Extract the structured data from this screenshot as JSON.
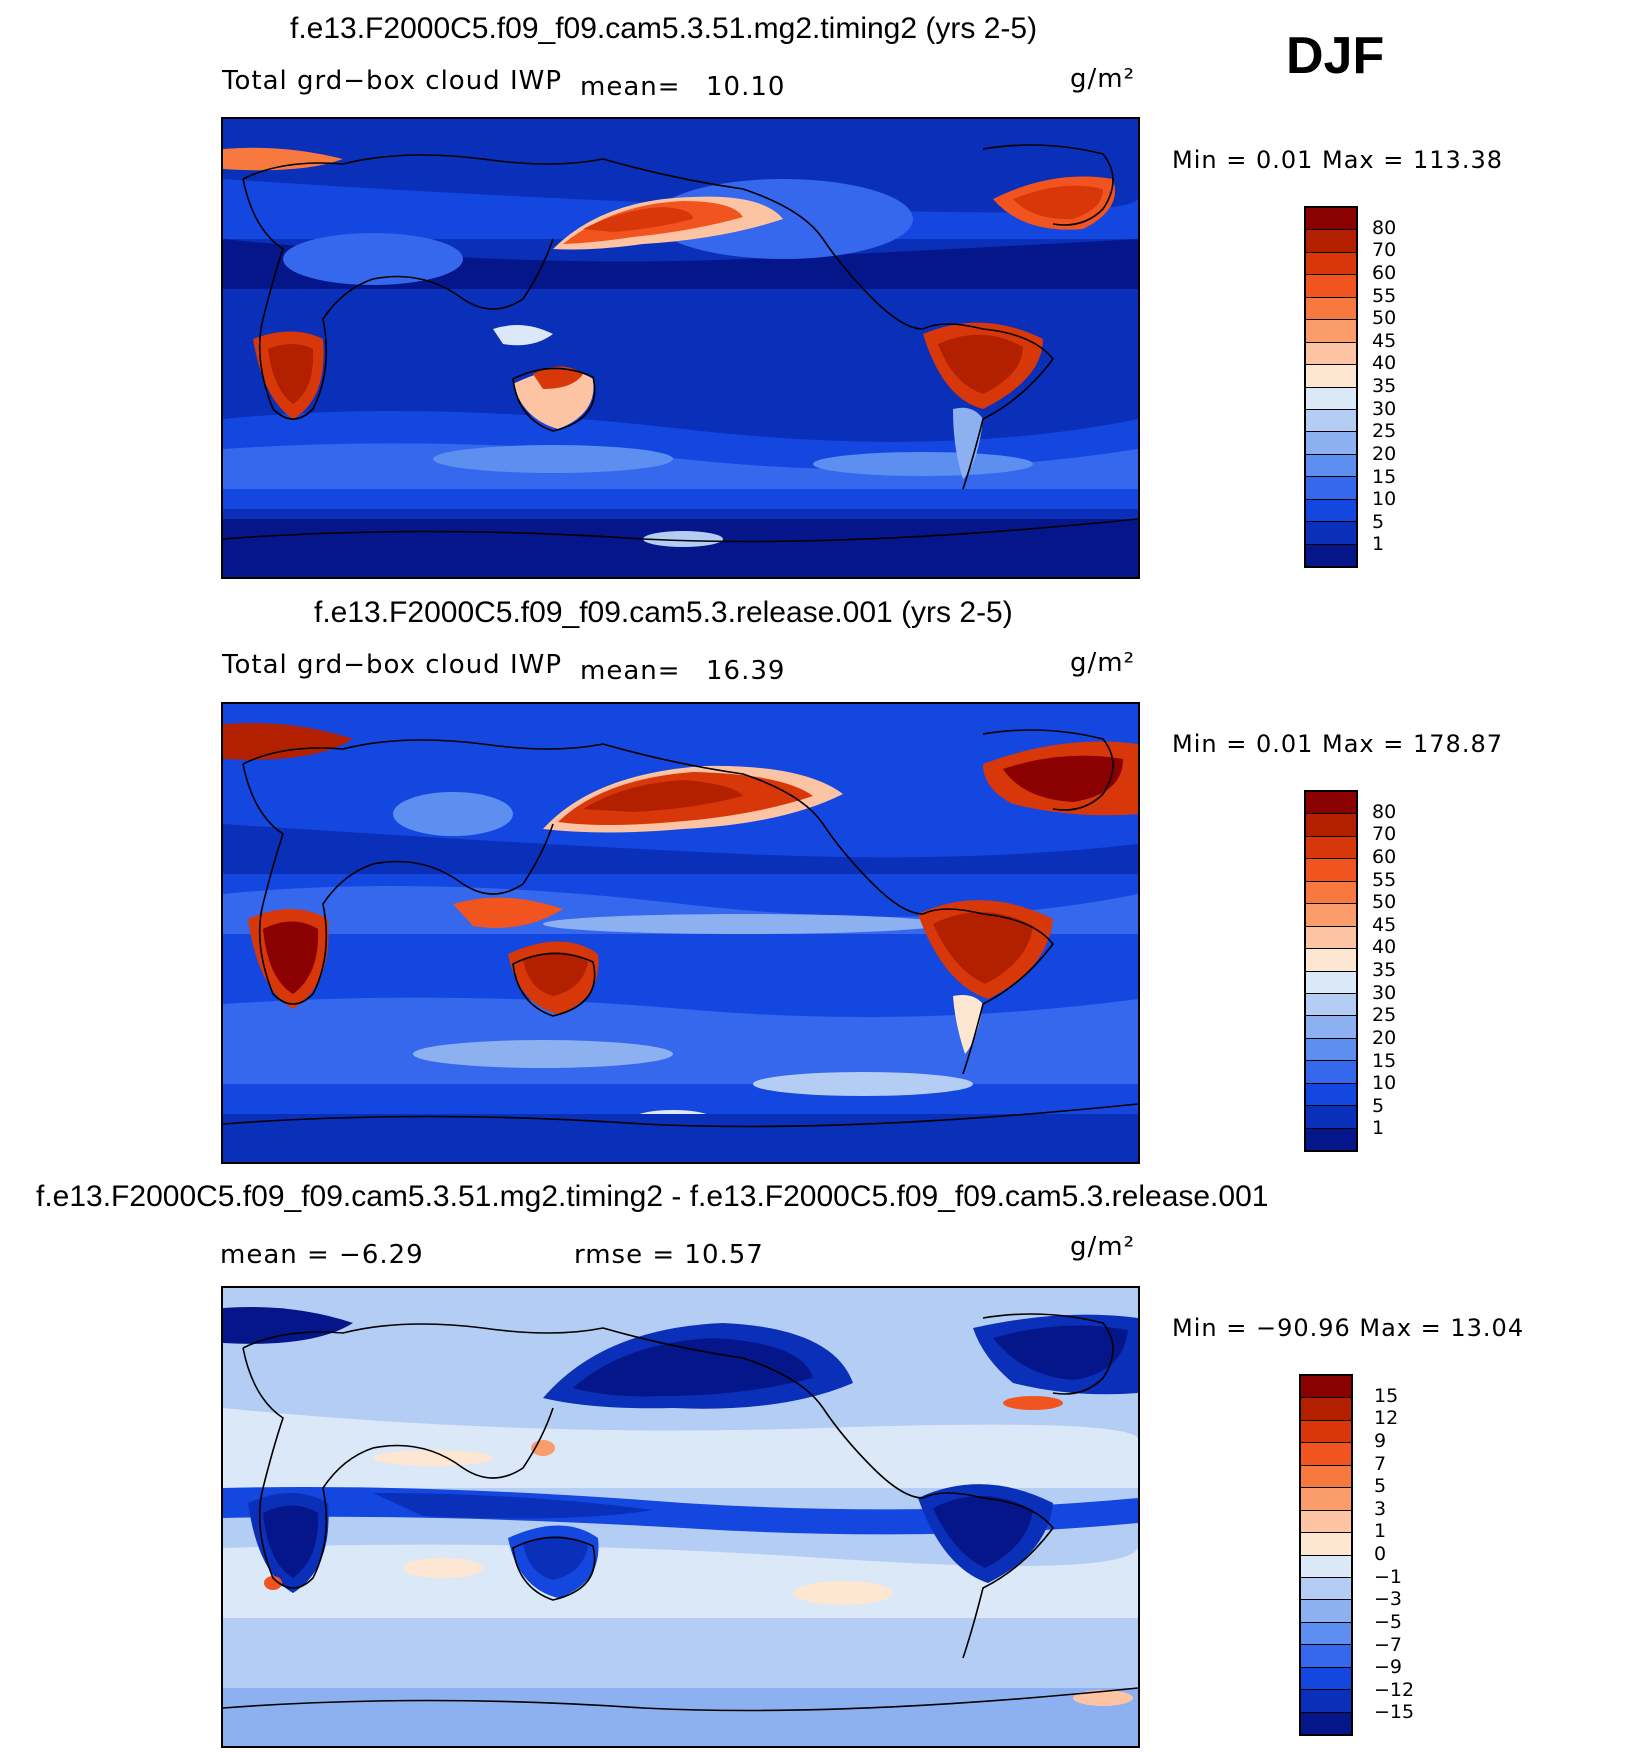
{
  "season": "DJF",
  "units": "g/m²",
  "panels": [
    {
      "title": "f.e13.F2000C5.f09_f09.cam5.3.51.mg2.timing2 (yrs 2-5)",
      "variable": "Total grd−box cloud IWP",
      "mean_label": "mean=",
      "mean_value": "10.10",
      "minmax": "Min =    0.01  Max  =  113.38",
      "colorbar_labels": [
        "80",
        "70",
        "60",
        "55",
        "50",
        "45",
        "40",
        "35",
        "30",
        "25",
        "20",
        "15",
        "10",
        "5",
        "1"
      ],
      "colorbar_colors": [
        "#8b0000",
        "#b22000",
        "#d8370a",
        "#f2541f",
        "#f8793f",
        "#fb9d6a",
        "#fcc4a3",
        "#fde6d2",
        "#dbe8f8",
        "#b4cdf4",
        "#8cb0f0",
        "#5d8ff0",
        "#3568ec",
        "#1447e0",
        "#0a2fb8",
        "#05168a"
      ]
    },
    {
      "title": "f.e13.F2000C5.f09_f09.cam5.3.release.001 (yrs 2-5)",
      "variable": "Total grd−box cloud IWP",
      "mean_label": "mean=",
      "mean_value": "16.39",
      "minmax": "Min =    0.01  Max  =  178.87",
      "colorbar_labels": [
        "80",
        "70",
        "60",
        "55",
        "50",
        "45",
        "40",
        "35",
        "30",
        "25",
        "20",
        "15",
        "10",
        "5",
        "1"
      ],
      "colorbar_colors": [
        "#8b0000",
        "#b22000",
        "#d8370a",
        "#f2541f",
        "#f8793f",
        "#fb9d6a",
        "#fcc4a3",
        "#fde6d2",
        "#dbe8f8",
        "#b4cdf4",
        "#8cb0f0",
        "#5d8ff0",
        "#3568ec",
        "#1447e0",
        "#0a2fb8",
        "#05168a"
      ]
    },
    {
      "title": "f.e13.F2000C5.f09_f09.cam5.3.51.mg2.timing2 - f.e13.F2000C5.f09_f09.cam5.3.release.001",
      "mean_text": "mean =   −6.29",
      "rmse_text": "rmse =   10.57",
      "minmax": "Min = −90.96  Max =    13.04",
      "colorbar_labels": [
        "15",
        "12",
        "9",
        "7",
        "5",
        "3",
        "1",
        "0",
        "−1",
        "−3",
        "−5",
        "−7",
        "−9",
        "−12",
        "−15"
      ],
      "colorbar_colors": [
        "#8b0000",
        "#b22000",
        "#d8370a",
        "#f2541f",
        "#f8793f",
        "#fb9d6a",
        "#fcc4a3",
        "#fde6d2",
        "#dbe8f8",
        "#b4cdf4",
        "#8cb0f0",
        "#5d8ff0",
        "#3568ec",
        "#1447e0",
        "#0a2fb8",
        "#05168a"
      ]
    }
  ]
}
